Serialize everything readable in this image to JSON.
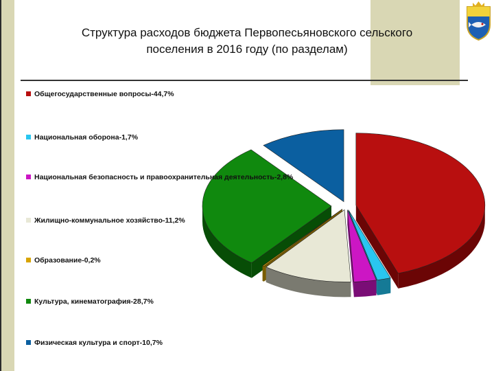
{
  "title": "Структура расходов бюджета Первопесьяновского сельского поселения в 2016 году (по разделам)",
  "chart_data": {
    "type": "pie",
    "title": "Структура расходов бюджета Первопесьяновского сельского поселения в 2016 году (по разделам)",
    "legend_position": "left",
    "slices": [
      {
        "label": "Общегосударственные вопросы-44,7%",
        "value": 44.7,
        "color": "#b80f0f",
        "side": "#6b0505"
      },
      {
        "label": "Национальная оборона-1,7%",
        "value": 1.7,
        "color": "#29c6f0",
        "side": "#157a96"
      },
      {
        "label": "Национальная безопасность и правоохранительная деятельность-2,8%",
        "value": 2.8,
        "color": "#cc16c4",
        "side": "#7a0d76"
      },
      {
        "label": "Жилищно-коммунальное хозяйство-11,2%",
        "value": 11.2,
        "color": "#e8e8d6",
        "side": "#7a7a70"
      },
      {
        "label": "Образование-0,2%",
        "value": 0.2,
        "color": "#d8a400",
        "side": "#7a5d00"
      },
      {
        "label": "Культура, кинематография-28,7%",
        "value": 28.7,
        "color": "#10890e",
        "side": "#074d06"
      },
      {
        "label": "Физическая культура и спорт-10,7%",
        "value": 10.7,
        "color": "#0b5fa0",
        "side": "#063a63"
      }
    ]
  }
}
